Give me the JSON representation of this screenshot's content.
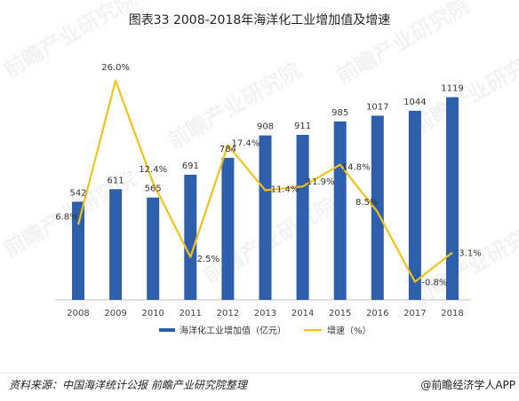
{
  "chart_data": {
    "type": "bar+line",
    "title": "图表33  2008-2018年海洋化工业增加值及增速",
    "categories": [
      "2008",
      "2009",
      "2010",
      "2011",
      "2012",
      "2013",
      "2014",
      "2015",
      "2016",
      "2017",
      "2018"
    ],
    "series": [
      {
        "name": "海洋化工业增加值（亿元）",
        "type": "bar",
        "color": "#2e5fac",
        "values": [
          542,
          611,
          565,
          691,
          784,
          908,
          911,
          985,
          1017,
          1044,
          1119
        ]
      },
      {
        "name": "增速（%）",
        "type": "line",
        "color": "#f2c21b",
        "values": [
          6.8,
          26.0,
          12.4,
          2.5,
          17.4,
          11.4,
          11.9,
          14.8,
          8.5,
          -0.8,
          3.1
        ]
      }
    ],
    "bar_labels": [
      "542",
      "611",
      "565",
      "691",
      "784",
      "908",
      "911",
      "985",
      "1017",
      "1044",
      "1119"
    ],
    "line_labels": [
      "6.8%",
      "26.0%",
      "12.4%",
      "2.5%",
      "17.4%",
      "11.4%",
      "11.9%",
      "14.8%",
      "8.5%",
      "-0.8%",
      "3.1%"
    ],
    "ylim_bar": [
      0,
      1200
    ],
    "ylim_line": [
      -3.2,
      30
    ],
    "legend_position": "bottom",
    "grid": false
  },
  "footer": {
    "source": "资料来源：中国海洋统计公报 前瞻产业研究院整理",
    "brand": "@前瞻经济学人APP"
  },
  "watermark": {
    "text": "前瞻产业研究院"
  }
}
